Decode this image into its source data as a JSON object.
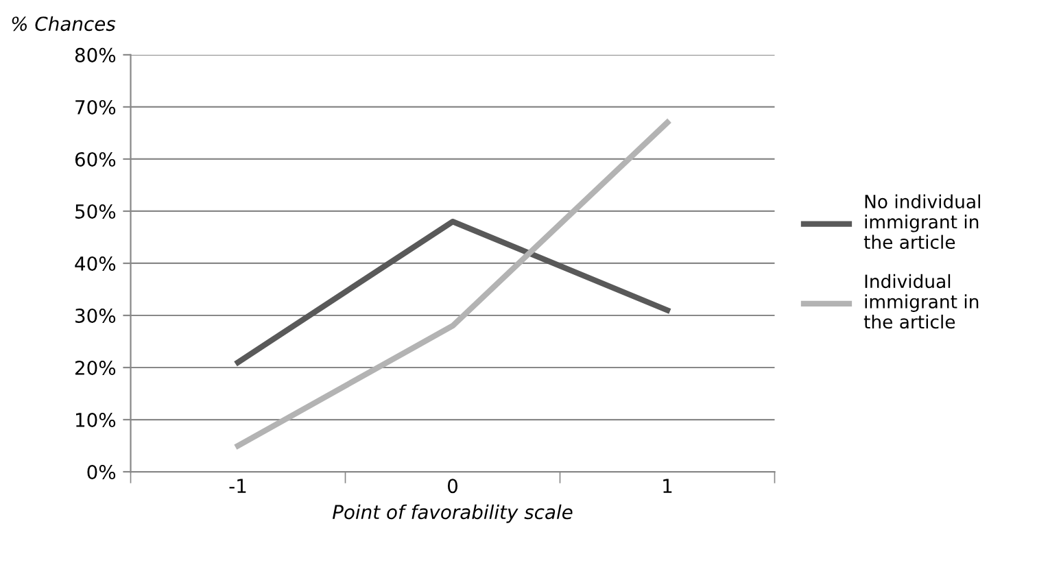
{
  "chart_data": {
    "type": "line",
    "ylabel": "% Chances",
    "xlabel": "Point of favorability scale",
    "categories": [
      "-1",
      "0",
      "1"
    ],
    "series": [
      {
        "name": "No individual immigrant in the article",
        "color": "#595959",
        "values": [
          21,
          48,
          31
        ]
      },
      {
        "name": "Individual immigrant in the article",
        "color": "#b3b3b3",
        "values": [
          5,
          28,
          67
        ]
      }
    ],
    "ylim": [
      0,
      80
    ],
    "yticks": [
      {
        "value": 0,
        "label": "0%"
      },
      {
        "value": 10,
        "label": "10%"
      },
      {
        "value": 20,
        "label": "20%"
      },
      {
        "value": 30,
        "label": "30%"
      },
      {
        "value": 40,
        "label": "40%"
      },
      {
        "value": 50,
        "label": "50%"
      },
      {
        "value": 60,
        "label": "60%"
      },
      {
        "value": 70,
        "label": "70%"
      },
      {
        "value": 80,
        "label": "80%"
      }
    ],
    "grid": "y",
    "legend": "right",
    "marker": "none",
    "line_style": "solid"
  }
}
